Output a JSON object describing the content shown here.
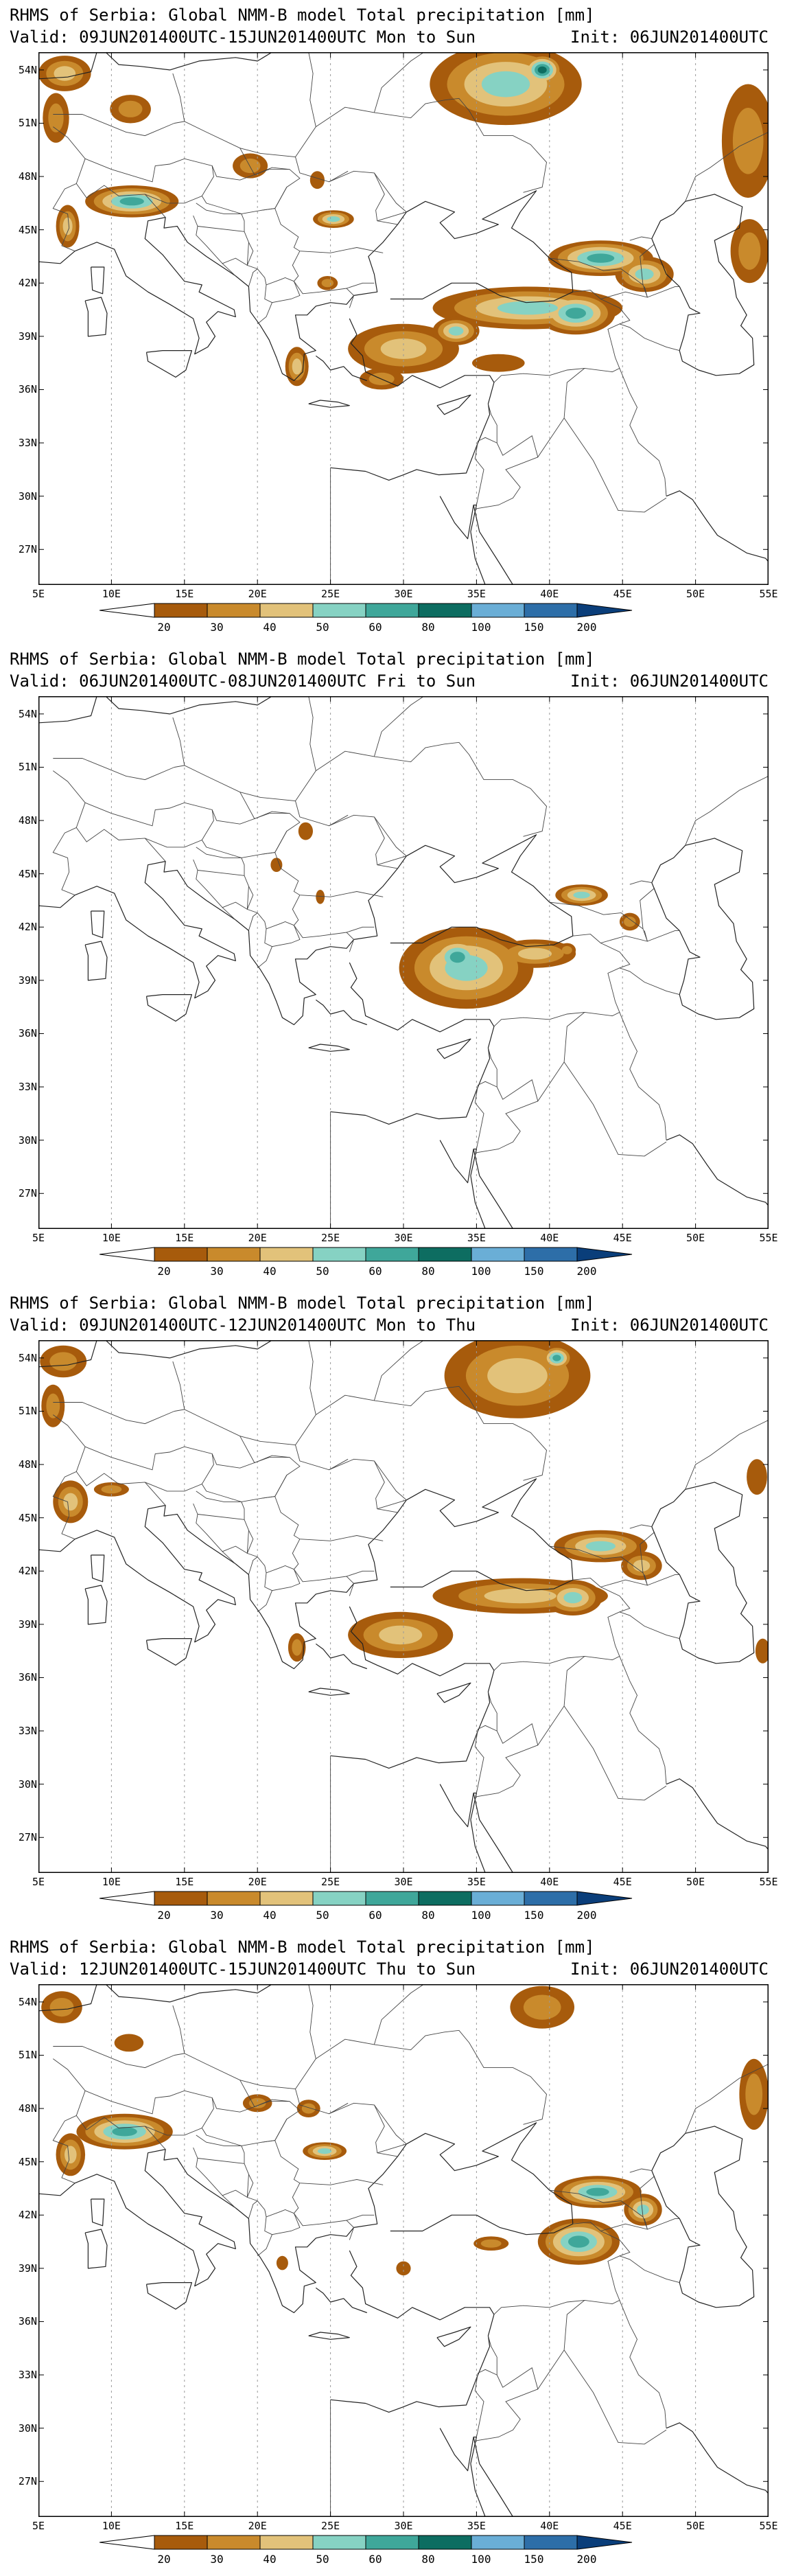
{
  "panels": [
    {
      "title": "RHMS of Serbia: Global NMM-B model Total precipitation [mm]",
      "valid": "Valid: 09JUN201400UTC-15JUN201400UTC Mon to Sun",
      "init": "Init: 06JUN201400UTC"
    },
    {
      "title": "RHMS of Serbia: Global NMM-B model Total precipitation [mm]",
      "valid": "Valid: 06JUN201400UTC-08JUN201400UTC Fri to Sun",
      "init": "Init: 06JUN201400UTC"
    },
    {
      "title": "RHMS of Serbia: Global NMM-B model Total precipitation [mm]",
      "valid": "Valid: 09JUN201400UTC-12JUN201400UTC Mon to Thu",
      "init": "Init: 06JUN201400UTC"
    },
    {
      "title": "RHMS of Serbia: Global NMM-B model Total precipitation [mm]",
      "valid": "Valid: 12JUN201400UTC-15JUN201400UTC Thu to Sun",
      "init": "Init: 06JUN201400UTC"
    }
  ],
  "lat_labels": [
    "54N",
    "51N",
    "48N",
    "45N",
    "42N",
    "39N",
    "36N",
    "33N",
    "30N",
    "27N"
  ],
  "lon_labels": [
    "5E",
    "10E",
    "15E",
    "20E",
    "25E",
    "30E",
    "35E",
    "40E",
    "45E",
    "50E",
    "55E"
  ],
  "colorbar": {
    "levels": [
      "20",
      "30",
      "40",
      "50",
      "60",
      "80",
      "100",
      "150",
      "200"
    ],
    "colors": [
      "#a75b0c",
      "#c98a2c",
      "#e2c27a",
      "#86d2c3",
      "#3fa79a",
      "#0d6d61",
      "#6aaed6",
      "#2d6ea8",
      "#0a3e7a"
    ]
  },
  "map_extent": {
    "lon": [
      5,
      55
    ],
    "lat": [
      25,
      55
    ]
  },
  "precip_colors": {
    "l20": "#a75b0c",
    "l30": "#c98a2c",
    "l40": "#e2c27a",
    "l50": "#86d2c3",
    "l60": "#3fa79a",
    "l80": "#0d6d61",
    "l100": "#6aaed6"
  },
  "blobs": [
    [
      {
        "lon": 6.8,
        "lat": 53.8,
        "rx": 1.8,
        "ry": 1.0,
        "lv": 3
      },
      {
        "lon": 6.2,
        "lat": 51.3,
        "rx": 0.9,
        "ry": 1.4,
        "lv": 2
      },
      {
        "lon": 11.3,
        "lat": 51.8,
        "rx": 1.4,
        "ry": 0.8,
        "lv": 2
      },
      {
        "lon": 19.5,
        "lat": 48.6,
        "rx": 1.2,
        "ry": 0.7,
        "lv": 2
      },
      {
        "lon": 11.4,
        "lat": 46.6,
        "rx": 3.2,
        "ry": 0.9,
        "lv": 5
      },
      {
        "lon": 7.0,
        "lat": 45.2,
        "rx": 0.8,
        "ry": 1.2,
        "lv": 3
      },
      {
        "lon": 25.2,
        "lat": 45.6,
        "rx": 1.4,
        "ry": 0.5,
        "lv": 4
      },
      {
        "lon": 24.1,
        "lat": 47.8,
        "rx": 0.5,
        "ry": 0.5,
        "lv": 1
      },
      {
        "lon": 24.8,
        "lat": 42.0,
        "rx": 0.7,
        "ry": 0.4,
        "lv": 2
      },
      {
        "lon": 37.0,
        "lat": 53.2,
        "rx": 5.2,
        "ry": 2.3,
        "lv": 4
      },
      {
        "lon": 39.5,
        "lat": 54.0,
        "rx": 1.4,
        "ry": 0.9,
        "lv": 6
      },
      {
        "lon": 53.6,
        "lat": 50.0,
        "rx": 1.8,
        "ry": 3.2,
        "lv": 2
      },
      {
        "lon": 43.5,
        "lat": 43.4,
        "rx": 3.6,
        "ry": 1.0,
        "lv": 5
      },
      {
        "lon": 46.5,
        "lat": 42.5,
        "rx": 2.0,
        "ry": 1.0,
        "lv": 4
      },
      {
        "lon": 53.7,
        "lat": 43.8,
        "rx": 1.3,
        "ry": 1.8,
        "lv": 2
      },
      {
        "lon": 38.5,
        "lat": 40.6,
        "rx": 6.5,
        "ry": 1.2,
        "lv": 4
      },
      {
        "lon": 41.8,
        "lat": 40.3,
        "rx": 2.7,
        "ry": 1.2,
        "lv": 5
      },
      {
        "lon": 30.0,
        "lat": 38.3,
        "rx": 3.8,
        "ry": 1.4,
        "lv": 3
      },
      {
        "lon": 33.6,
        "lat": 39.3,
        "rx": 1.6,
        "ry": 0.8,
        "lv": 4
      },
      {
        "lon": 22.7,
        "lat": 37.3,
        "rx": 0.8,
        "ry": 1.1,
        "lv": 3
      },
      {
        "lon": 28.5,
        "lat": 36.6,
        "rx": 1.5,
        "ry": 0.6,
        "lv": 2
      },
      {
        "lon": 36.5,
        "lat": 37.5,
        "rx": 1.8,
        "ry": 0.5,
        "lv": 1
      }
    ],
    [
      {
        "lon": 23.3,
        "lat": 47.4,
        "rx": 0.5,
        "ry": 0.5,
        "lv": 1
      },
      {
        "lon": 21.3,
        "lat": 45.5,
        "rx": 0.4,
        "ry": 0.4,
        "lv": 1
      },
      {
        "lon": 24.3,
        "lat": 43.7,
        "rx": 0.3,
        "ry": 0.4,
        "lv": 1
      },
      {
        "lon": 34.3,
        "lat": 39.7,
        "rx": 4.6,
        "ry": 2.3,
        "lv": 4
      },
      {
        "lon": 33.7,
        "lat": 40.3,
        "rx": 2.0,
        "ry": 1.2,
        "lv": 5
      },
      {
        "lon": 39.0,
        "lat": 40.5,
        "rx": 2.8,
        "ry": 0.8,
        "lv": 3
      },
      {
        "lon": 42.2,
        "lat": 43.8,
        "rx": 1.8,
        "ry": 0.6,
        "lv": 4
      },
      {
        "lon": 45.5,
        "lat": 42.3,
        "rx": 0.7,
        "ry": 0.5,
        "lv": 2
      },
      {
        "lon": 41.2,
        "lat": 40.7,
        "rx": 0.6,
        "ry": 0.4,
        "lv": 2
      }
    ],
    [
      {
        "lon": 6.7,
        "lat": 53.8,
        "rx": 1.6,
        "ry": 0.9,
        "lv": 2
      },
      {
        "lon": 6.0,
        "lat": 51.3,
        "rx": 0.8,
        "ry": 1.2,
        "lv": 2
      },
      {
        "lon": 7.2,
        "lat": 45.9,
        "rx": 1.2,
        "ry": 1.2,
        "lv": 3
      },
      {
        "lon": 10.0,
        "lat": 46.6,
        "rx": 1.2,
        "ry": 0.4,
        "lv": 2
      },
      {
        "lon": 37.8,
        "lat": 53.0,
        "rx": 5.0,
        "ry": 2.4,
        "lv": 3
      },
      {
        "lon": 40.5,
        "lat": 54.0,
        "rx": 1.1,
        "ry": 0.7,
        "lv": 5
      },
      {
        "lon": 54.2,
        "lat": 47.3,
        "rx": 0.7,
        "ry": 1.0,
        "lv": 1
      },
      {
        "lon": 43.5,
        "lat": 43.4,
        "rx": 3.2,
        "ry": 0.9,
        "lv": 4
      },
      {
        "lon": 46.3,
        "lat": 42.3,
        "rx": 1.4,
        "ry": 0.8,
        "lv": 3
      },
      {
        "lon": 38.0,
        "lat": 40.6,
        "rx": 6.0,
        "ry": 1.0,
        "lv": 3
      },
      {
        "lon": 41.6,
        "lat": 40.5,
        "rx": 2.0,
        "ry": 1.0,
        "lv": 4
      },
      {
        "lon": 29.8,
        "lat": 38.4,
        "rx": 3.6,
        "ry": 1.3,
        "lv": 3
      },
      {
        "lon": 22.7,
        "lat": 37.7,
        "rx": 0.6,
        "ry": 0.8,
        "lv": 2
      },
      {
        "lon": 54.6,
        "lat": 37.5,
        "rx": 0.5,
        "ry": 0.7,
        "lv": 1
      }
    ],
    [
      {
        "lon": 6.6,
        "lat": 53.7,
        "rx": 1.4,
        "ry": 0.9,
        "lv": 2
      },
      {
        "lon": 11.2,
        "lat": 51.7,
        "rx": 1.0,
        "ry": 0.5,
        "lv": 1
      },
      {
        "lon": 10.9,
        "lat": 46.7,
        "rx": 3.3,
        "ry": 1.0,
        "lv": 5
      },
      {
        "lon": 7.2,
        "lat": 45.4,
        "rx": 1.0,
        "ry": 1.2,
        "lv": 3
      },
      {
        "lon": 24.6,
        "lat": 45.6,
        "rx": 1.5,
        "ry": 0.5,
        "lv": 4
      },
      {
        "lon": 20.0,
        "lat": 48.3,
        "rx": 1.0,
        "ry": 0.5,
        "lv": 2
      },
      {
        "lon": 23.5,
        "lat": 48.0,
        "rx": 0.8,
        "ry": 0.5,
        "lv": 2
      },
      {
        "lon": 39.5,
        "lat": 53.7,
        "rx": 2.2,
        "ry": 1.2,
        "lv": 2
      },
      {
        "lon": 54.0,
        "lat": 48.8,
        "rx": 1.0,
        "ry": 2.0,
        "lv": 2
      },
      {
        "lon": 43.3,
        "lat": 43.3,
        "rx": 3.0,
        "ry": 0.9,
        "lv": 5
      },
      {
        "lon": 46.4,
        "lat": 42.3,
        "rx": 1.3,
        "ry": 0.9,
        "lv": 4
      },
      {
        "lon": 42.0,
        "lat": 40.5,
        "rx": 2.8,
        "ry": 1.3,
        "lv": 5
      },
      {
        "lon": 36.0,
        "lat": 40.4,
        "rx": 1.2,
        "ry": 0.4,
        "lv": 2
      },
      {
        "lon": 30.0,
        "lat": 39.0,
        "rx": 0.5,
        "ry": 0.4,
        "lv": 1
      },
      {
        "lon": 21.7,
        "lat": 39.3,
        "rx": 0.4,
        "ry": 0.4,
        "lv": 1
      }
    ]
  ]
}
